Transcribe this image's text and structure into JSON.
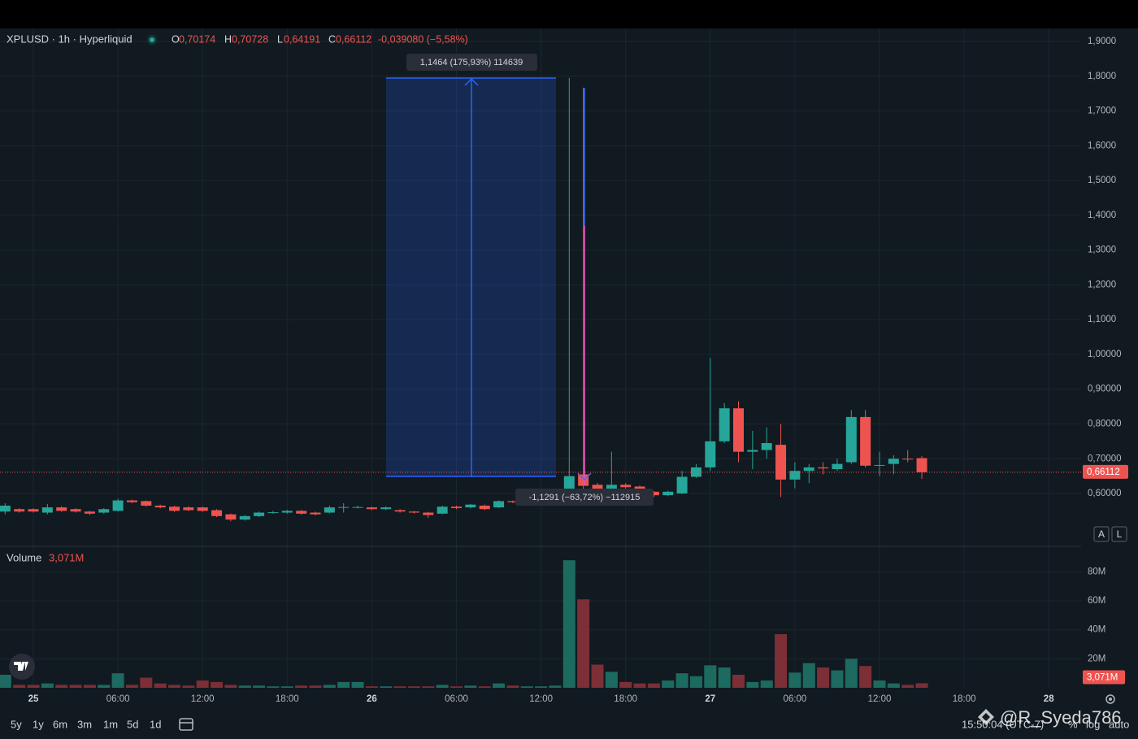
{
  "header": {
    "symbol": "XPLUSD · 1h · Hyperliquid",
    "ohlc": [
      {
        "key": "O",
        "value": "0,70174"
      },
      {
        "key": "H",
        "value": "0,70728"
      },
      {
        "key": "L",
        "value": "0,64191"
      },
      {
        "key": "C",
        "value": "0,66112"
      }
    ],
    "change": "-0,039080 (−5,58%)"
  },
  "toolbar": {
    "ranges": [
      "5y",
      "1y",
      "6m",
      "3m",
      "1m",
      "5d",
      "1d"
    ],
    "clock": "15:50:04 (UTC-7)",
    "percent": "%",
    "log": "log",
    "auto": "auto",
    "scale_buttons": [
      "A",
      "L"
    ],
    "watermark": "@R_Syeda786"
  },
  "chart_data": {
    "type": "candlestick",
    "categories": [
      null,
      null,
      "25",
      null,
      null,
      null,
      null,
      null,
      "06:00",
      null,
      null,
      null,
      null,
      null,
      "12:00",
      null,
      null,
      null,
      null,
      null,
      "18:00",
      null,
      null,
      null,
      null,
      null,
      "26",
      null,
      null,
      null,
      null,
      null,
      "06:00",
      null,
      null,
      null,
      null,
      null,
      "12:00",
      null,
      null,
      null,
      null,
      null,
      "18:00",
      null,
      null,
      null,
      null,
      null,
      "27",
      null,
      null,
      null,
      null,
      null,
      "06:00",
      null,
      null,
      null,
      null,
      null,
      "12:00",
      null,
      null,
      null,
      null,
      null,
      "18:00",
      null,
      null,
      null,
      null,
      null,
      "28"
    ],
    "open": [
      0.548,
      0.555,
      0.555,
      0.545,
      0.56,
      0.555,
      0.548,
      0.545,
      0.55,
      0.58,
      0.578,
      0.565,
      0.562,
      0.56,
      0.56,
      0.552,
      0.54,
      0.525,
      0.535,
      0.545,
      0.545,
      0.55,
      0.545,
      0.545,
      0.56,
      0.56,
      0.56,
      0.555,
      0.552,
      0.548,
      0.545,
      0.542,
      0.562,
      0.56,
      0.565,
      0.56,
      0.578,
      0.575,
      0.578,
      0.58,
      0.58,
      0.655,
      0.625,
      0.61,
      0.625,
      0.62,
      0.605,
      0.595,
      0.6,
      0.648,
      0.675,
      0.75,
      0.845,
      0.72,
      0.725,
      0.74,
      0.64,
      0.665,
      0.675,
      0.67,
      0.69,
      0.82,
      0.68,
      0.685,
      0.7,
      0.70174,
      null,
      null,
      null,
      null,
      null,
      null,
      null,
      null,
      null
    ],
    "high": [
      0.572,
      0.558,
      0.558,
      0.57,
      0.563,
      0.558,
      0.55,
      0.558,
      0.585,
      0.582,
      0.58,
      0.568,
      0.565,
      0.563,
      0.562,
      0.555,
      0.542,
      0.538,
      0.548,
      0.55,
      0.553,
      0.553,
      0.548,
      0.565,
      0.572,
      0.565,
      0.562,
      0.563,
      0.555,
      0.55,
      0.547,
      0.565,
      0.565,
      0.57,
      0.568,
      0.58,
      0.58,
      0.583,
      0.585,
      0.59,
      1.795,
      1.767,
      0.63,
      0.72,
      0.63,
      0.623,
      0.607,
      0.608,
      0.665,
      0.685,
      0.99,
      0.86,
      0.865,
      0.78,
      0.79,
      0.8,
      0.69,
      0.685,
      0.69,
      0.7,
      0.84,
      0.84,
      0.72,
      0.71,
      0.725,
      0.70728,
      null,
      null,
      null,
      null,
      null,
      null,
      null,
      null,
      null
    ],
    "low": [
      0.54,
      0.545,
      0.545,
      0.54,
      0.547,
      0.545,
      0.538,
      0.542,
      0.548,
      0.572,
      0.562,
      0.557,
      0.547,
      0.549,
      0.547,
      0.532,
      0.52,
      0.522,
      0.532,
      0.542,
      0.542,
      0.539,
      0.537,
      0.543,
      0.545,
      0.557,
      0.552,
      0.552,
      0.545,
      0.542,
      0.53,
      0.54,
      0.555,
      0.557,
      0.552,
      0.558,
      0.572,
      0.572,
      0.575,
      0.577,
      0.578,
      0.61,
      0.605,
      0.605,
      0.612,
      0.6,
      0.59,
      0.592,
      0.598,
      0.645,
      0.665,
      0.745,
      0.69,
      0.67,
      0.7,
      0.59,
      0.615,
      0.63,
      0.655,
      0.665,
      0.685,
      0.675,
      0.65,
      0.655,
      0.69,
      0.64191,
      null,
      null,
      null,
      null,
      null,
      null,
      null,
      null,
      null
    ],
    "close": [
      0.565,
      0.548,
      0.548,
      0.56,
      0.55,
      0.548,
      0.542,
      0.555,
      0.58,
      0.575,
      0.565,
      0.56,
      0.55,
      0.552,
      0.55,
      0.535,
      0.525,
      0.535,
      0.545,
      0.546,
      0.55,
      0.542,
      0.54,
      0.56,
      0.561,
      0.561,
      0.555,
      0.56,
      0.548,
      0.545,
      0.538,
      0.562,
      0.558,
      0.568,
      0.555,
      0.578,
      0.575,
      0.58,
      0.582,
      0.585,
      0.65,
      0.622,
      0.61,
      0.625,
      0.618,
      0.605,
      0.595,
      0.605,
      0.648,
      0.675,
      0.75,
      0.845,
      0.72,
      0.725,
      0.745,
      0.64,
      0.665,
      0.675,
      0.672,
      0.685,
      0.82,
      0.68,
      0.682,
      0.7,
      0.698,
      0.66112,
      null,
      null,
      null,
      null,
      null,
      null,
      null,
      null,
      null
    ],
    "volume": [
      9000000,
      2000000,
      2000000,
      3000000,
      2000000,
      2000000,
      2000000,
      2000000,
      10000000,
      2000000,
      7000000,
      3000000,
      2000000,
      1500000,
      5000000,
      4000000,
      2000000,
      1500000,
      1500000,
      1000000,
      1000000,
      1500000,
      1500000,
      2000000,
      4000000,
      4000000,
      1000000,
      1000000,
      1000000,
      1000000,
      1000000,
      2000000,
      1000000,
      1500000,
      1000000,
      3000000,
      1500000,
      1000000,
      1000000,
      1500000,
      88000000,
      61000000,
      16000000,
      11000000,
      4000000,
      3000000,
      3000000,
      5000000,
      10000000,
      8000000,
      15500000,
      14000000,
      9000000,
      4000000,
      5000000,
      37000000,
      10500000,
      17000000,
      14000000,
      12000000,
      20000000,
      15000000,
      5000000,
      3000000,
      2000000,
      3071000,
      null,
      null,
      null,
      null,
      null,
      null,
      null,
      null,
      null
    ],
    "up_color": "#26a69a",
    "down_color": "#ef5350",
    "volume_up_color": "#1d6a60",
    "volume_down_color": "#7c2f36",
    "ylim": [
      0.4527,
      1.9374
    ],
    "yticks": [
      {
        "value": 0.6,
        "label": "0,60000"
      },
      {
        "value": 0.7,
        "label": "0,70000"
      },
      {
        "value": 0.8,
        "label": "0,80000"
      },
      {
        "value": 0.9,
        "label": "0,90000"
      },
      {
        "value": 1.0,
        "label": "1,00000"
      },
      {
        "value": 1.1,
        "label": "1,1000"
      },
      {
        "value": 1.2,
        "label": "1,2000"
      },
      {
        "value": 1.3,
        "label": "1,3000"
      },
      {
        "value": 1.4,
        "label": "1,4000"
      },
      {
        "value": 1.5,
        "label": "1,5000"
      },
      {
        "value": 1.6,
        "label": "1,6000"
      },
      {
        "value": 1.7,
        "label": "1,7000"
      },
      {
        "value": 1.8,
        "label": "1,8000"
      },
      {
        "value": 1.9,
        "label": "1,9000"
      }
    ],
    "last_price": {
      "value": 0.66112,
      "label": "0,66112"
    },
    "volume_title": "Volume",
    "volume_last": {
      "value": 3071000,
      "label": "3,071M"
    },
    "volume_ylim": [
      0,
      97600000
    ],
    "volume_yticks": [
      {
        "value": 20000000,
        "label": "20M"
      },
      {
        "value": 40000000,
        "label": "40M"
      },
      {
        "value": 60000000,
        "label": "60M"
      },
      {
        "value": 80000000,
        "label": "80M"
      }
    ],
    "annotations": [
      "1,1464 (175,93%) 114639",
      "-1,1291 (−63,72%) −112915"
    ],
    "grid": true
  }
}
